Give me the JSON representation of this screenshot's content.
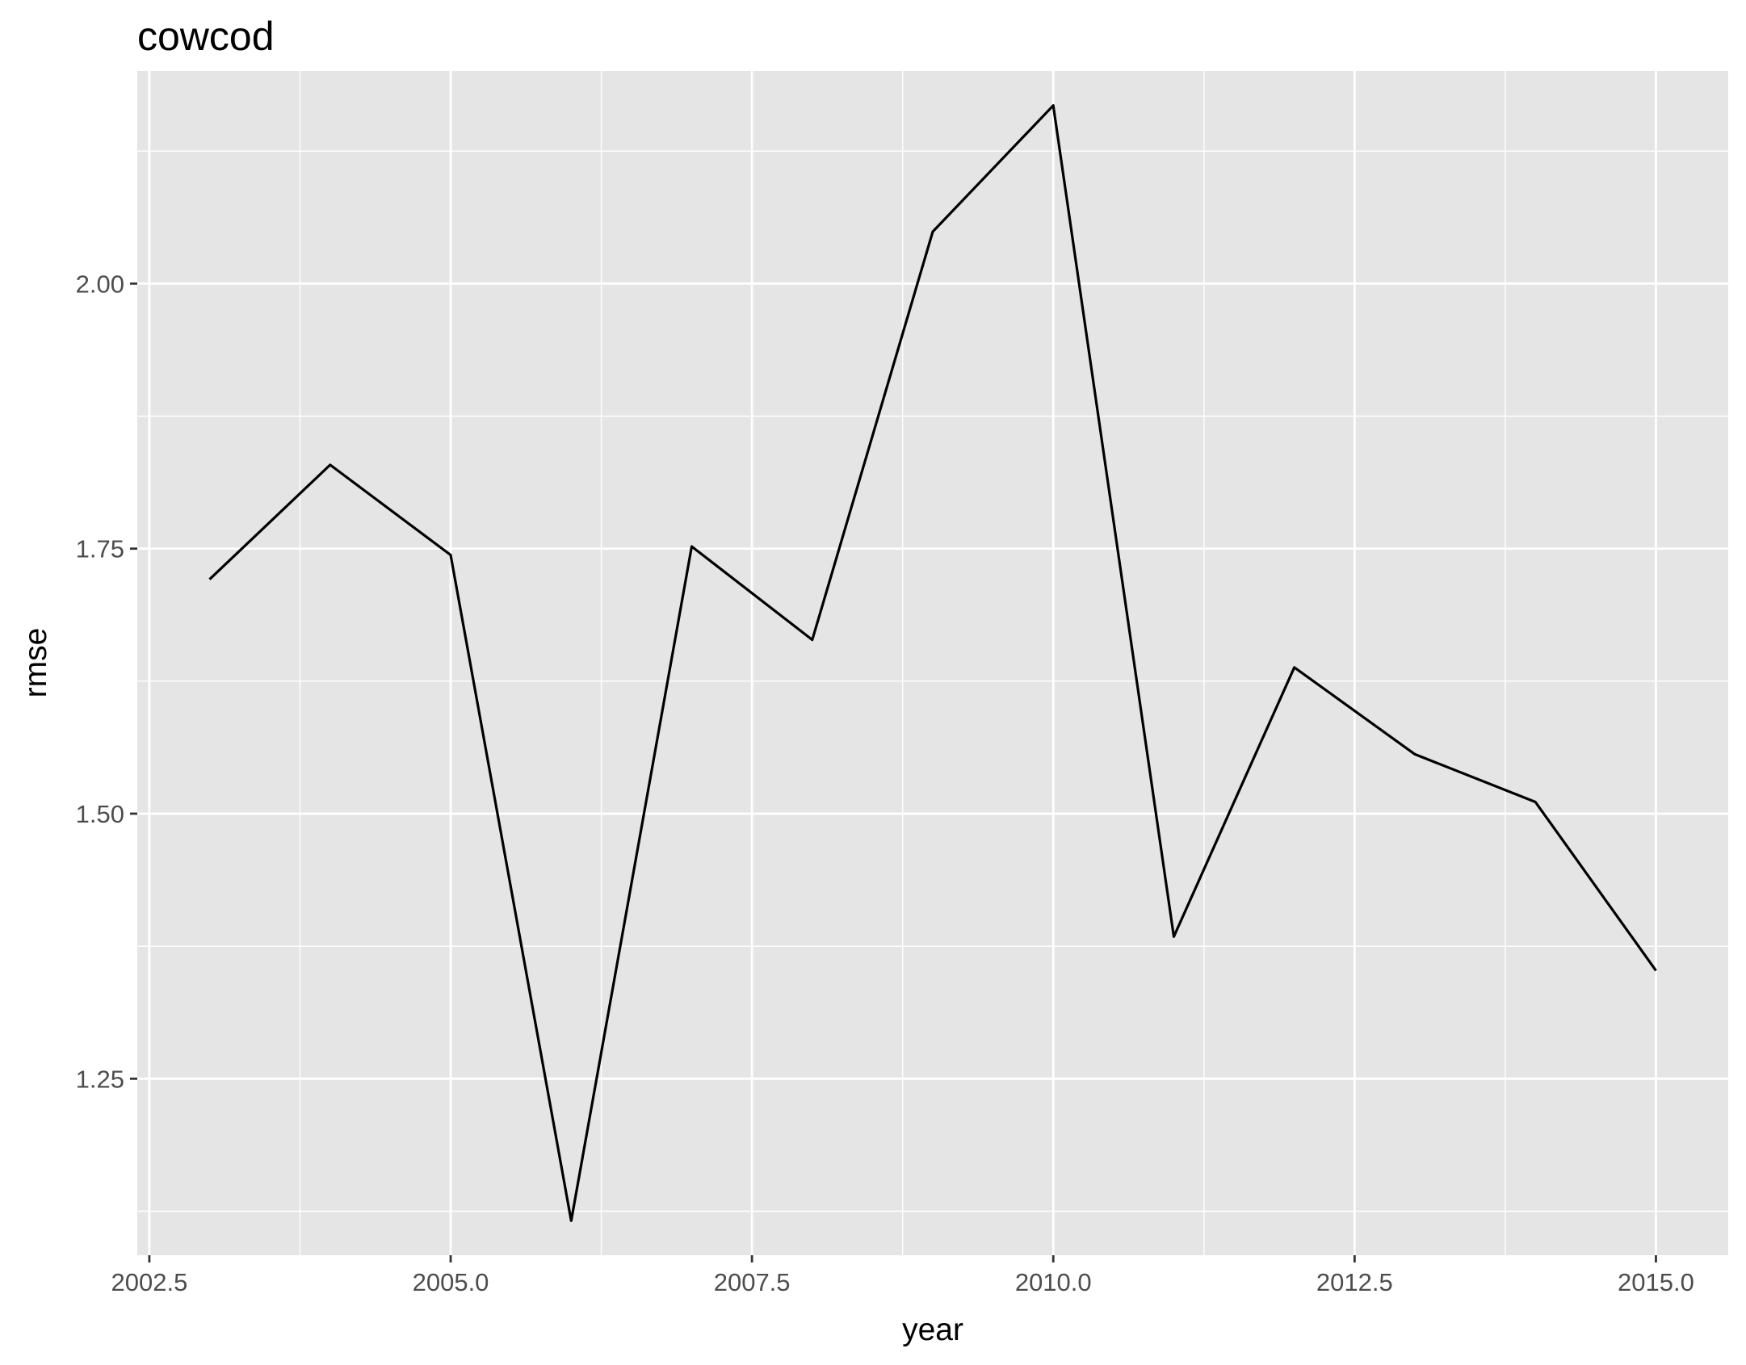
{
  "chart_data": {
    "type": "line",
    "title": "cowcod",
    "xlabel": "year",
    "ylabel": "rmse",
    "x": [
      2003,
      2004,
      2005,
      2006,
      2007,
      2008,
      2009,
      2010,
      2011,
      2012,
      2013,
      2014,
      2015
    ],
    "series": [
      {
        "values": [
          1.721,
          1.829,
          1.744,
          1.116,
          1.752,
          1.664,
          2.049,
          2.168,
          1.384,
          1.638,
          1.556,
          1.511,
          1.352
        ]
      }
    ],
    "xlim": [
      2002.4,
      2015.6
    ],
    "ylim": [
      1.0835,
      2.2005
    ],
    "x_ticks": [
      2002.5,
      2005.0,
      2007.5,
      2010.0,
      2012.5,
      2015.0
    ],
    "x_tick_labels": [
      "2002.5",
      "2005.0",
      "2007.5",
      "2010.0",
      "2012.5",
      "2015.0"
    ],
    "y_ticks": [
      1.25,
      1.5,
      1.75,
      2.0
    ],
    "y_tick_labels": [
      "1.25",
      "1.50",
      "1.75",
      "2.00"
    ],
    "grid": true,
    "panel_color": "#e5e5e5",
    "grid_color": "#ffffff",
    "line_color": "#000000"
  }
}
